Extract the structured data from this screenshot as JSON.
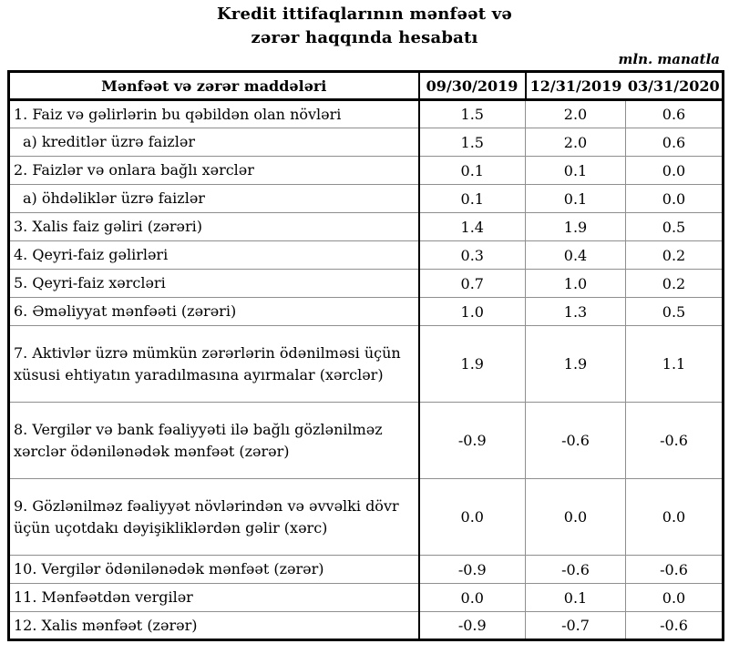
{
  "title": {
    "line1": "Kredit ittifaqlarının mənfəət və",
    "line2": "zərər haqqında hesabatı"
  },
  "unit_note": "mln. manatla",
  "colors": {
    "text": "#000000",
    "strong_border": "#000000",
    "thin_border": "#8f8f8f",
    "background": "#ffffff"
  },
  "table": {
    "header": {
      "items_label": "Mənfəət və zərər maddələri",
      "periods": [
        "09/30/2019",
        "12/31/2019",
        "03/31/2020"
      ]
    },
    "rows": [
      {
        "label": "1. Faiz və gəlirlərin bu qəbildən olan növləri",
        "values": [
          "1.5",
          "2.0",
          "0.6"
        ]
      },
      {
        "label": "a) kreditlər üzrə faizlər",
        "values": [
          "1.5",
          "2.0",
          "0.6"
        ]
      },
      {
        "label": "2. Faizlər və onlara bağlı xərclər",
        "values": [
          "0.1",
          "0.1",
          "0.0"
        ]
      },
      {
        "label": "a) öhdəliklər üzrə faizlər",
        "values": [
          "0.1",
          "0.1",
          "0.0"
        ]
      },
      {
        "label": "3. Xalis faiz gəliri (zərəri)",
        "values": [
          "1.4",
          "1.9",
          "0.5"
        ]
      },
      {
        "label": "4. Qeyri-faiz gəlirləri",
        "values": [
          "0.3",
          "0.4",
          "0.2"
        ]
      },
      {
        "label": "5. Qeyri-faiz xərcləri",
        "values": [
          "0.7",
          "1.0",
          "0.2"
        ]
      },
      {
        "label": "6. Əməliyyat mənfəəti (zərəri)",
        "values": [
          "1.0",
          "1.3",
          "0.5"
        ]
      },
      {
        "label": "7. Aktivlər üzrə mümkün zərərlərin ödənilməsi üçün xüsusi ehtiyatın yaradılmasına ayırmalar (xərclər)",
        "values": [
          "1.9",
          "1.9",
          "1.1"
        ]
      },
      {
        "label": "8. Vergilər və bank fəaliyyəti ilə bağlı gözlənilməz xərclər ödənilənədək mənfəət (zərər)",
        "values": [
          "-0.9",
          "-0.6",
          "-0.6"
        ]
      },
      {
        "label": "9. Gözlənilməz fəaliyyət növlərindən və əvvəlki dövr üçün uçotdakı dəyişikliklərdən gəlir (xərc)",
        "values": [
          "0.0",
          "0.0",
          "0.0"
        ]
      },
      {
        "label": "10. Vergilər ödənilənədək mənfəət (zərər)",
        "values": [
          "-0.9",
          "-0.6",
          "-0.6"
        ]
      },
      {
        "label": "11. Mənfəətdən vergilər",
        "values": [
          "0.0",
          "0.1",
          "0.0"
        ]
      },
      {
        "label": "12. Xalis mənfəət (zərər)",
        "values": [
          "-0.9",
          "-0.7",
          "-0.6"
        ]
      }
    ]
  }
}
